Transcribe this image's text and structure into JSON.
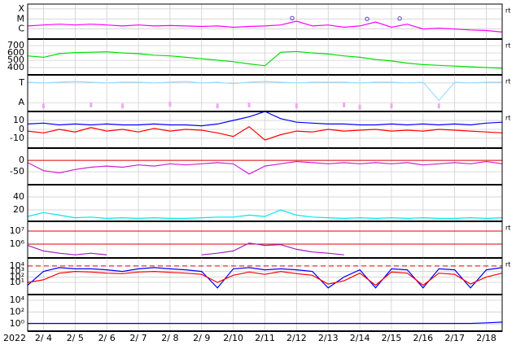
{
  "chart_data": {
    "type": "multi-panel",
    "year_label": "2022",
    "xlim": [
      3.5,
      18.5
    ],
    "xticks": [
      {
        "value": 4,
        "label": "2/ 4"
      },
      {
        "value": 5,
        "label": "2/ 5"
      },
      {
        "value": 6,
        "label": "2/ 6"
      },
      {
        "value": 7,
        "label": "2/ 7"
      },
      {
        "value": 8,
        "label": "2/ 8"
      },
      {
        "value": 9,
        "label": "2/ 9"
      },
      {
        "value": 10,
        "label": "2/10"
      },
      {
        "value": 11,
        "label": "2/11"
      },
      {
        "value": 12,
        "label": "2/12"
      },
      {
        "value": 13,
        "label": "2/13"
      },
      {
        "value": 14,
        "label": "2/14"
      },
      {
        "value": 15,
        "label": "2/15"
      },
      {
        "value": 16,
        "label": "2/16"
      },
      {
        "value": 17,
        "label": "2/17"
      },
      {
        "value": 18,
        "label": "2/18"
      }
    ],
    "grid": true,
    "x": [
      3.5,
      4,
      4.5,
      5,
      5.5,
      6,
      6.5,
      7,
      7.5,
      8,
      8.5,
      9,
      9.5,
      10,
      10.5,
      11,
      11.5,
      12,
      12.5,
      13,
      13.5,
      14,
      14.5,
      15,
      15.5,
      16,
      16.5,
      17,
      17.5,
      18,
      18.5
    ],
    "panels": [
      {
        "type": "line",
        "log": true,
        "side_label": "rt",
        "ylim": [
          1e-07,
          0.0003
        ],
        "yticks": [
          {
            "value": 0.0001,
            "label": "X"
          },
          {
            "value": 1e-05,
            "label": "M"
          },
          {
            "value": 1e-06,
            "label": "C"
          }
        ],
        "series": [
          {
            "color": "#ff00ff",
            "values": [
              2e-06,
              2.5e-06,
              3e-06,
              2.5e-06,
              3e-06,
              2.5e-06,
              2e-06,
              2.5e-06,
              2e-06,
              2.2e-06,
              2e-06,
              1.8e-06,
              2e-06,
              1.5e-06,
              1.8e-06,
              2e-06,
              2.5e-06,
              6e-06,
              2e-06,
              2.5e-06,
              1.5e-06,
              2e-06,
              5e-06,
              1.5e-06,
              3e-06,
              1e-06,
              1.2e-06,
              1e-06,
              8e-07,
              7e-07,
              5e-07
            ]
          }
        ],
        "markers": {
          "color": "#5a3fc0",
          "x": [
            11.86,
            14.23,
            15.26
          ],
          "values": [
            1.2e-05,
            1e-05,
            1.1e-05
          ]
        }
      },
      {
        "type": "line",
        "log": false,
        "side_label": "rt",
        "ylim": [
          300,
          790
        ],
        "yticks": [
          700,
          600,
          500,
          400
        ],
        "series": [
          {
            "color": "#00e000",
            "values": [
              560,
              540,
              590,
              605,
              610,
              615,
              600,
              590,
              570,
              560,
              540,
              520,
              500,
              480,
              450,
              425,
              610,
              620,
              600,
              585,
              560,
              540,
              510,
              490,
              460,
              440,
              430,
              420,
              410,
              400,
              390
            ]
          }
        ]
      },
      {
        "type": "line",
        "log": false,
        "side_label": "rt",
        "ylim": [
          0,
          1
        ],
        "yticks": [
          {
            "value": 0.78,
            "label": "T"
          },
          {
            "value": 0.24,
            "label": "A"
          }
        ],
        "series": [
          {
            "color": "#9fdcff",
            "values": [
              0.8,
              0.78,
              0.8,
              0.82,
              0.8,
              0.78,
              0.8,
              0.8,
              0.78,
              0.8,
              0.82,
              0.78,
              0.8,
              0.76,
              0.8,
              0.82,
              0.8,
              0.78,
              0.8,
              0.8,
              0.8,
              0.78,
              0.8,
              0.8,
              0.78,
              0.8,
              0.3,
              0.8,
              0.78,
              0.8,
              0.8
            ]
          },
          {
            "color": "#f2a6f2",
            "mode": "points",
            "values": [
              null,
              0.15,
              null,
              null,
              0.18,
              null,
              0.15,
              null,
              null,
              0.2,
              null,
              null,
              0.15,
              null,
              0.18,
              null,
              null,
              0.15,
              null,
              null,
              0.18,
              0.12,
              null,
              0.15,
              null,
              null,
              0.15,
              null,
              null,
              null,
              null
            ]
          }
        ]
      },
      {
        "type": "line",
        "log": false,
        "side_label": "rt",
        "ylim": [
          -21,
          20
        ],
        "yticks": [
          10,
          0,
          -10
        ],
        "series": [
          {
            "color": "#0000ff",
            "values": [
              6,
              7,
              5,
              6,
              5,
              6,
              5,
              5,
              6,
              5,
              5,
              4,
              6,
              10,
              14,
              20,
              12,
              8,
              7,
              6,
              6,
              5,
              5,
              6,
              5,
              6,
              5,
              6,
              5,
              7,
              8
            ]
          },
          {
            "color": "#ff0000",
            "values": [
              -2,
              -4,
              0,
              -3,
              2,
              -2,
              0,
              -3,
              1,
              -2,
              0,
              -1,
              -4,
              -8,
              3,
              -12,
              -6,
              -2,
              -3,
              0,
              -2,
              -1,
              0,
              -2,
              -1,
              -2,
              0,
              -1,
              -2,
              -3,
              -4
            ]
          }
        ]
      },
      {
        "type": "line",
        "log": false,
        "ylim": [
          -107,
          54
        ],
        "yticks": [
          0,
          -50
        ],
        "ref_lines": [
          {
            "value": 0,
            "color": "#e00000",
            "dashed": false
          }
        ],
        "series": [
          {
            "color": "#d020d0",
            "values": [
              -10,
              -45,
              -55,
              -40,
              -30,
              -25,
              -30,
              -20,
              -25,
              -15,
              -20,
              -15,
              -10,
              -15,
              -60,
              -25,
              -15,
              -5,
              -10,
              -15,
              -10,
              -15,
              -10,
              -15,
              -10,
              -20,
              -15,
              -10,
              -15,
              -5,
              -15
            ]
          }
        ]
      },
      {
        "type": "line",
        "log": false,
        "ylim": [
          2.5,
          58.75
        ],
        "yticks": [
          40,
          20
        ],
        "series": [
          {
            "color": "#00e8e8",
            "values": [
              10,
              16,
              12,
              8,
              9,
              7,
              8,
              7,
              8,
              7,
              7,
              8,
              9,
              9,
              12,
              10,
              20,
              12,
              9,
              8,
              7,
              8,
              7,
              8,
              7,
              8,
              7,
              7,
              8,
              7,
              8
            ]
          }
        ]
      },
      {
        "type": "line",
        "log": true,
        "side_label": "rt",
        "ylim": [
          87000,
          56000000
        ],
        "yticks": [
          {
            "value": 10000000,
            "label": "10⁷"
          },
          {
            "value": 1000000,
            "label": "10⁶"
          }
        ],
        "ref_lines": [
          {
            "value": 10000000,
            "color": "#e00000",
            "dashed": false
          },
          {
            "value": 1000000,
            "color": "#e00000",
            "dashed": false
          }
        ],
        "series": [
          {
            "color": "#a020c0",
            "values": [
              800000,
              300000,
              200000,
              150000,
              200000,
              150000,
              null,
              null,
              null,
              null,
              null,
              150000,
              200000,
              300000,
              1200000,
              800000,
              900000,
              400000,
              250000,
              200000,
              150000,
              null,
              null,
              null,
              null,
              null,
              null,
              null,
              null,
              null,
              null
            ]
          }
        ]
      },
      {
        "type": "line",
        "log": true,
        "side_label": "rt",
        "ylim": [
          0.06,
          300000
        ],
        "yticks": [
          {
            "value": 10000,
            "label": "10⁴"
          },
          {
            "value": 1000,
            "label": "10³"
          },
          {
            "value": 100,
            "label": "10²"
          },
          {
            "value": 10,
            "label": "10¹"
          }
        ],
        "ref_lines": [
          {
            "value": 10000,
            "color": "#e00000",
            "dashed": true
          }
        ],
        "series": [
          {
            "color": "#0000ff",
            "values": [
              3,
              1000,
              5000,
              3000,
              3000,
              2000,
              1000,
              3000,
              5000,
              3000,
              2000,
              1000,
              1,
              3000,
              5000,
              2000,
              3000,
              2000,
              1000,
              1,
              100,
              2000,
              1,
              3000,
              2000,
              1,
              3000,
              2000,
              1,
              2000,
              5000
            ]
          },
          {
            "color": "#ff0000",
            "values": [
              10,
              30,
              500,
              1000,
              800,
              500,
              400,
              800,
              1000,
              700,
              500,
              300,
              10,
              200,
              800,
              300,
              1000,
              400,
              200,
              5,
              20,
              500,
              3,
              800,
              500,
              3,
              500,
              300,
              5,
              100,
              500
            ]
          }
        ]
      },
      {
        "type": "line",
        "log": true,
        "ylim": [
          0.06,
          90000
        ],
        "yticks": [
          {
            "value": 10000,
            "label": "10⁴"
          },
          {
            "value": 100,
            "label": "10²"
          },
          {
            "value": 1,
            "label": "10⁰"
          }
        ],
        "series": [
          {
            "color": "#0000ff",
            "values": [
              1.2,
              1.2,
              1.2,
              1.2,
              1.2,
              1.2,
              1.2,
              1.2,
              1.2,
              1.2,
              1.2,
              1.2,
              1.2,
              1.2,
              1.2,
              1.2,
              1.2,
              1.2,
              1.2,
              1.2,
              1.2,
              1.2,
              1.2,
              1.2,
              1.2,
              1.2,
              1.2,
              1.2,
              1.2,
              1.5,
              2
            ]
          }
        ]
      }
    ]
  }
}
